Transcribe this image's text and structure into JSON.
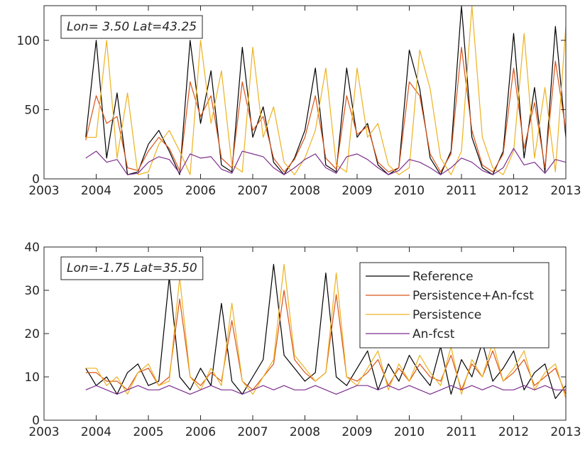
{
  "chart_data": [
    {
      "type": "line",
      "annotation": "Lon= 3.50 Lat=43.25",
      "x": [
        2003.8,
        2004,
        2004.2,
        2004.4,
        2004.6,
        2004.8,
        2005,
        2005.2,
        2005.4,
        2005.6,
        2005.8,
        2006,
        2006.2,
        2006.4,
        2006.6,
        2006.8,
        2007,
        2007.2,
        2007.4,
        2007.6,
        2007.8,
        2008,
        2008.2,
        2008.4,
        2008.6,
        2008.8,
        2009,
        2009.2,
        2009.4,
        2009.6,
        2009.8,
        2010,
        2010.2,
        2010.4,
        2010.6,
        2010.8,
        2011,
        2011.2,
        2011.4,
        2011.6,
        2011.8,
        2012,
        2012.2,
        2012.4,
        2012.6,
        2012.8,
        2013
      ],
      "series": [
        {
          "color": "#000000",
          "values": [
            30,
            100,
            15,
            62,
            3,
            5,
            25,
            35,
            20,
            3,
            100,
            40,
            78,
            10,
            5,
            95,
            30,
            52,
            12,
            3,
            15,
            35,
            80,
            10,
            5,
            80,
            30,
            40,
            10,
            3,
            8,
            93,
            65,
            15,
            3,
            20,
            125,
            30,
            8,
            3,
            20,
            105,
            15,
            66,
            5,
            110,
            30
          ]
        },
        {
          "color": "#d95319",
          "values": [
            28,
            60,
            40,
            45,
            8,
            6,
            20,
            30,
            22,
            6,
            70,
            45,
            60,
            15,
            8,
            70,
            35,
            45,
            15,
            5,
            14,
            30,
            60,
            15,
            7,
            60,
            32,
            38,
            12,
            5,
            8,
            70,
            60,
            18,
            5,
            18,
            95,
            35,
            10,
            5,
            18,
            80,
            22,
            55,
            8,
            85,
            35
          ]
        },
        {
          "color": "#edb120",
          "values": [
            30,
            30,
            100,
            15,
            62,
            3,
            5,
            25,
            35,
            20,
            3,
            100,
            40,
            78,
            10,
            5,
            95,
            30,
            52,
            12,
            3,
            15,
            35,
            80,
            10,
            5,
            80,
            30,
            40,
            10,
            3,
            8,
            93,
            65,
            15,
            3,
            20,
            125,
            30,
            8,
            3,
            20,
            105,
            15,
            66,
            5,
            110
          ]
        },
        {
          "color": "#7e2f8e",
          "values": [
            15,
            20,
            12,
            14,
            3,
            4,
            12,
            16,
            14,
            4,
            18,
            15,
            16,
            7,
            4,
            20,
            18,
            16,
            8,
            3,
            8,
            14,
            18,
            8,
            4,
            16,
            18,
            14,
            8,
            3,
            6,
            14,
            12,
            8,
            3,
            8,
            15,
            12,
            6,
            3,
            8,
            22,
            10,
            12,
            4,
            14,
            12
          ]
        }
      ],
      "xlim": [
        2003,
        2013
      ],
      "xticks": [
        2003,
        2004,
        2005,
        2006,
        2007,
        2008,
        2009,
        2010,
        2011,
        2012,
        2013
      ],
      "ylim": [
        0,
        125
      ],
      "yticks": [
        0,
        50,
        100
      ]
    },
    {
      "type": "line",
      "annotation": "Lon=-1.75 Lat=35.50",
      "x": [
        2003.8,
        2004,
        2004.2,
        2004.4,
        2004.6,
        2004.8,
        2005,
        2005.2,
        2005.4,
        2005.6,
        2005.8,
        2006,
        2006.2,
        2006.4,
        2006.6,
        2006.8,
        2007,
        2007.2,
        2007.4,
        2007.6,
        2007.8,
        2008,
        2008.2,
        2008.4,
        2008.6,
        2008.8,
        2009,
        2009.2,
        2009.4,
        2009.6,
        2009.8,
        2010,
        2010.2,
        2010.4,
        2010.6,
        2010.8,
        2011,
        2011.2,
        2011.4,
        2011.6,
        2011.8,
        2012,
        2012.2,
        2012.4,
        2012.6,
        2012.8,
        2013
      ],
      "series": [
        {
          "name": "Reference",
          "color": "#000000",
          "values": [
            12,
            8,
            10,
            6,
            11,
            13,
            8,
            9,
            33,
            10,
            7,
            12,
            8,
            27,
            9,
            6,
            10,
            14,
            36,
            15,
            12,
            9,
            11,
            34,
            10,
            8,
            12,
            16,
            7,
            13,
            9,
            15,
            11,
            8,
            17,
            6,
            14,
            10,
            18,
            9,
            12,
            16,
            7,
            11,
            13,
            5,
            8
          ]
        },
        {
          "name": "Persistence+An-fcst",
          "color": "#d95319",
          "values": [
            11,
            11,
            9,
            9,
            7,
            11,
            12,
            8,
            10,
            28,
            10,
            8,
            11,
            9,
            23,
            9,
            7,
            10,
            13,
            30,
            14,
            11,
            9,
            11,
            29,
            10,
            9,
            11,
            14,
            8,
            12,
            9,
            13,
            10,
            9,
            15,
            7,
            13,
            10,
            16,
            9,
            11,
            14,
            8,
            10,
            12,
            6
          ]
        },
        {
          "name": "Persistence",
          "color": "#edb120",
          "values": [
            12,
            12,
            8,
            10,
            6,
            11,
            13,
            8,
            9,
            33,
            10,
            7,
            12,
            8,
            27,
            9,
            6,
            10,
            14,
            36,
            15,
            12,
            9,
            11,
            34,
            10,
            8,
            12,
            16,
            7,
            13,
            9,
            15,
            11,
            8,
            17,
            6,
            14,
            10,
            18,
            9,
            12,
            16,
            7,
            11,
            13,
            5
          ]
        },
        {
          "name": "An-fcst",
          "color": "#7e2f8e",
          "values": [
            7,
            8,
            7,
            6,
            7,
            8,
            7,
            7,
            8,
            7,
            6,
            7,
            8,
            7,
            7,
            6,
            7,
            8,
            7,
            8,
            7,
            7,
            8,
            7,
            6,
            7,
            8,
            8,
            7,
            8,
            7,
            8,
            7,
            6,
            7,
            8,
            7,
            8,
            7,
            8,
            7,
            7,
            8,
            7,
            8,
            7,
            7
          ]
        }
      ],
      "xlim": [
        2003,
        2013
      ],
      "xticks": [
        2003,
        2004,
        2005,
        2006,
        2007,
        2008,
        2009,
        2010,
        2011,
        2012,
        2013
      ],
      "ylim": [
        0,
        40
      ],
      "yticks": [
        0,
        10,
        20,
        30,
        40
      ],
      "legend": "upper right"
    }
  ]
}
